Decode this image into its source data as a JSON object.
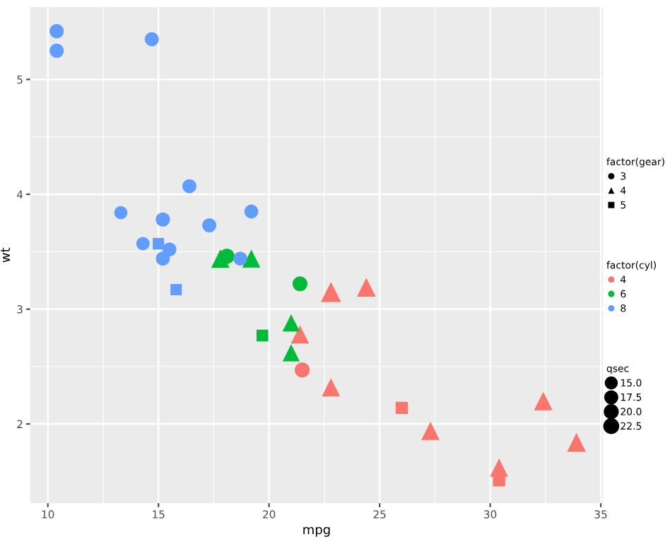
{
  "chart_data": {
    "type": "bubble",
    "xlabel": "mpg",
    "ylabel": "wt",
    "xlim": [
      9.2,
      35.1
    ],
    "ylim": [
      1.31,
      5.63
    ],
    "xticks": [
      10,
      15,
      20,
      25,
      30,
      35
    ],
    "yticks": [
      2,
      3,
      4,
      5
    ],
    "grid": true,
    "legend": "right",
    "legend_title": [
      "factor(gear)",
      "factor(cyl)",
      "qsec"
    ],
    "size_legend": [
      {
        "value": 15,
        "label": "15.0"
      },
      {
        "value": 17.5,
        "label": "17.5"
      },
      {
        "value": 20,
        "label": "20.0"
      },
      {
        "value": 22.5,
        "label": "22.5"
      }
    ],
    "series": [
      {
        "name": "3",
        "marker": "circle"
      },
      {
        "name": "4",
        "marker": "triangle"
      },
      {
        "name": "5",
        "marker": "square"
      },
      {
        "name": "4",
        "color": "#f8766d",
        "marker": [
          "circle",
          "triangle",
          "triangle",
          "triangle",
          "triangle",
          "triangle",
          "triangle",
          "triangle",
          "triangle",
          "square",
          "square"
        ],
        "x": [
          21.5,
          22.8,
          24.4,
          22.8,
          32.4,
          30.4,
          33.9,
          27.3,
          21.4,
          26.0,
          30.4
        ],
        "values": [
          2.47,
          2.32,
          3.19,
          3.15,
          2.2,
          1.62,
          1.84,
          1.94,
          2.78,
          2.14,
          1.51
        ],
        "sizes": [
          20.01,
          18.61,
          20.0,
          22.9,
          19.47,
          18.52,
          19.9,
          18.9,
          18.6,
          16.7,
          16.9
        ]
      },
      {
        "name": "6",
        "color": "#00ba38",
        "marker": [
          "circle",
          "circle",
          "triangle",
          "triangle",
          "triangle",
          "triangle",
          "square"
        ],
        "x": [
          21.4,
          18.1,
          21.0,
          21.0,
          19.2,
          17.8,
          19.7
        ],
        "values": [
          3.22,
          3.46,
          2.62,
          2.88,
          3.44,
          3.44,
          2.77
        ],
        "sizes": [
          19.44,
          20.22,
          16.46,
          17.02,
          18.3,
          18.9,
          15.5
        ]
      },
      {
        "name": "8",
        "color": "#619cff",
        "marker": [
          "circle",
          "circle",
          "circle",
          "circle",
          "circle",
          "circle",
          "circle",
          "circle",
          "circle",
          "circle",
          "circle",
          "circle",
          "square",
          "square"
        ],
        "x": [
          18.7,
          14.3,
          16.4,
          17.3,
          15.2,
          10.4,
          10.4,
          14.7,
          15.5,
          15.2,
          13.3,
          19.2,
          15.8,
          15.0
        ],
        "values": [
          3.44,
          3.57,
          4.07,
          3.73,
          3.78,
          5.25,
          5.42,
          5.35,
          3.52,
          3.44,
          3.84,
          3.85,
          3.17,
          3.57
        ],
        "sizes": [
          17.02,
          15.84,
          17.4,
          17.6,
          18.0,
          17.98,
          17.82,
          17.42,
          16.87,
          17.3,
          15.41,
          17.05,
          14.5,
          14.6
        ]
      }
    ]
  }
}
